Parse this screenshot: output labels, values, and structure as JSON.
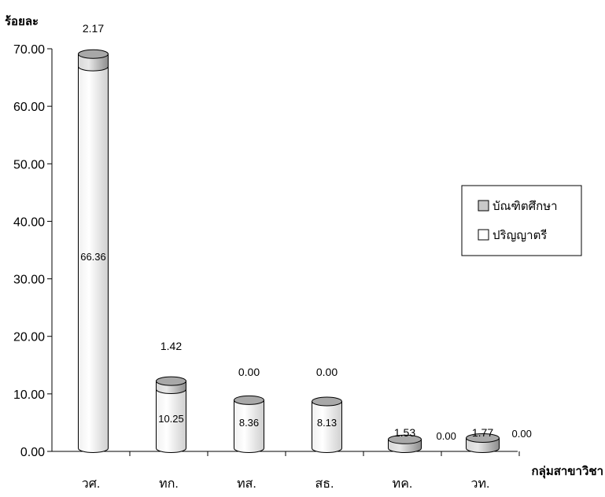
{
  "chart_data": {
    "type": "bar",
    "stacked": true,
    "style": "3d-cylinder",
    "ylabel": "ร้อยละ",
    "xlabel": "กลุ่มสาขาวิชา",
    "categories": [
      "วศ.",
      "ทก.",
      "ทส.",
      "สธ.",
      "ทค.",
      "วท."
    ],
    "ylim": [
      0,
      70
    ],
    "yticks": [
      "0.00",
      "10.00",
      "20.00",
      "30.00",
      "40.00",
      "50.00",
      "60.00",
      "70.00"
    ],
    "series": [
      {
        "name": "ปริญญาตรี",
        "values": [
          66.36,
          10.25,
          8.36,
          8.13,
          0.0,
          0.0
        ],
        "labels": [
          "66.36",
          "10.25",
          "8.36",
          "8.13",
          "0.00",
          "0.00"
        ],
        "color": "#ffffff"
      },
      {
        "name": "บัณฑิตศึกษา",
        "values": [
          2.17,
          1.42,
          0.0,
          0.0,
          1.53,
          1.77
        ],
        "labels": [
          "2.17",
          "1.42",
          "0.00",
          "0.00",
          "1.53",
          "1.77"
        ],
        "color": "#c8c8c8"
      }
    ],
    "legend": {
      "position": "right",
      "items": [
        {
          "name": "บัณฑิตศึกษา",
          "color": "#c8c8c8"
        },
        {
          "name": "ปริญญาตรี",
          "color": "#ffffff"
        }
      ]
    },
    "grid": false
  }
}
